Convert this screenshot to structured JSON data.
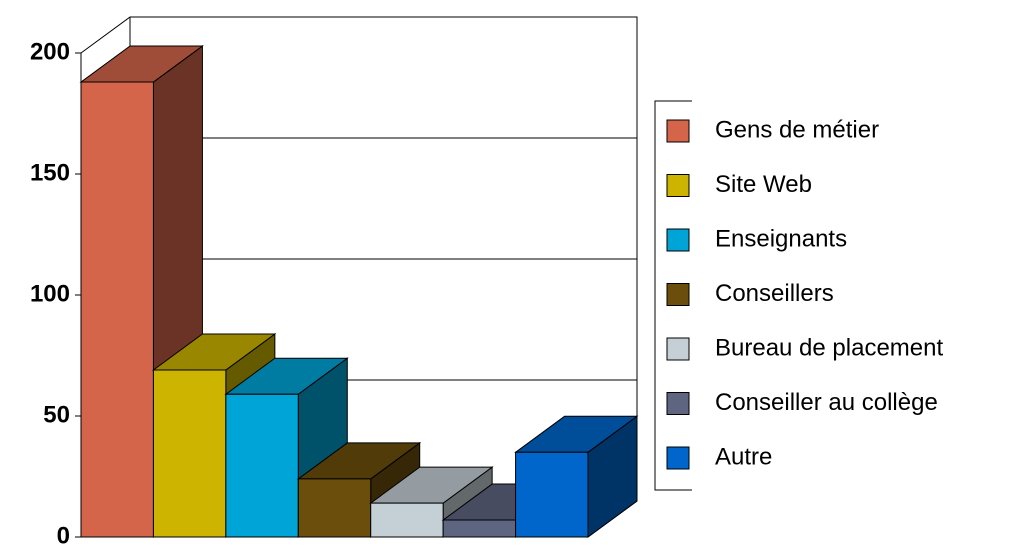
{
  "chart_data": {
    "type": "bar",
    "categories": [
      "Gens de métier",
      "Site Web",
      "Enseignants",
      "Conseillers",
      "Bureau de placement",
      "Conseiller au collège",
      "Autre"
    ],
    "values": [
      188,
      69,
      59,
      24,
      14,
      7,
      35
    ],
    "colors": [
      "#D4654A",
      "#CCB400",
      "#00A4D6",
      "#6B4E0C",
      "#C5CFD6",
      "#5E6580",
      "#0066CC"
    ],
    "ylim": [
      0,
      200
    ],
    "yticks": [
      0,
      50,
      100,
      150,
      200
    ],
    "grid": true,
    "legend": "right"
  }
}
